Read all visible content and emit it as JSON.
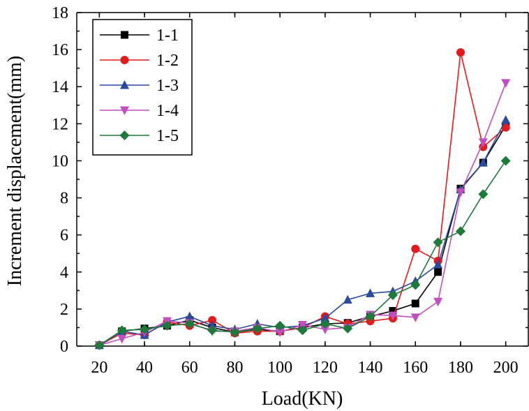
{
  "chart_data": {
    "type": "line",
    "title": "",
    "xlabel": "Load(KN)",
    "ylabel": "Increment displacement(mm)",
    "x": [
      20,
      30,
      40,
      50,
      60,
      70,
      80,
      90,
      100,
      110,
      120,
      130,
      140,
      150,
      160,
      170,
      180,
      190,
      200
    ],
    "xlim": [
      10,
      210
    ],
    "ylim": [
      0,
      18
    ],
    "xticks": [
      20,
      40,
      60,
      80,
      100,
      120,
      140,
      160,
      180,
      200
    ],
    "yticks": [
      0,
      2,
      4,
      6,
      8,
      10,
      12,
      14,
      16,
      18
    ],
    "grid": false,
    "legend_position": "top-left",
    "series": [
      {
        "name": "1-1",
        "color": "#000000",
        "marker": "square",
        "values": [
          0.05,
          0.8,
          0.95,
          1.1,
          1.4,
          1.0,
          0.75,
          0.9,
          0.8,
          1.0,
          1.2,
          1.25,
          1.6,
          1.9,
          2.3,
          4.0,
          8.5,
          9.9,
          11.9
        ]
      },
      {
        "name": "1-2",
        "color": "#e41a1c",
        "marker": "circle",
        "values": [
          0.05,
          0.7,
          0.6,
          1.3,
          1.1,
          1.4,
          0.7,
          0.8,
          0.8,
          1.0,
          1.6,
          1.2,
          1.35,
          1.5,
          5.25,
          4.6,
          15.85,
          10.75,
          11.8
        ]
      },
      {
        "name": "1-3",
        "color": "#2a4a9e",
        "marker": "triangle-up",
        "values": [
          0.05,
          0.8,
          0.6,
          1.3,
          1.6,
          1.1,
          0.9,
          1.2,
          1.0,
          1.1,
          1.5,
          2.5,
          2.85,
          2.95,
          3.5,
          4.4,
          8.45,
          9.9,
          12.2
        ]
      },
      {
        "name": "1-4",
        "color": "#c050c0",
        "marker": "triangle-down",
        "values": [
          0.05,
          0.4,
          0.75,
          1.35,
          1.25,
          0.8,
          0.8,
          1.0,
          0.75,
          1.15,
          0.9,
          1.0,
          1.7,
          1.65,
          1.55,
          2.4,
          8.3,
          11.0,
          14.2
        ]
      },
      {
        "name": "1-5",
        "color": "#1e7a3a",
        "marker": "diamond",
        "values": [
          0.05,
          0.85,
          0.9,
          1.1,
          1.2,
          0.85,
          0.75,
          0.95,
          1.1,
          0.85,
          1.2,
          0.95,
          1.6,
          2.75,
          3.3,
          5.6,
          6.2,
          8.2,
          10.0
        ]
      }
    ]
  }
}
